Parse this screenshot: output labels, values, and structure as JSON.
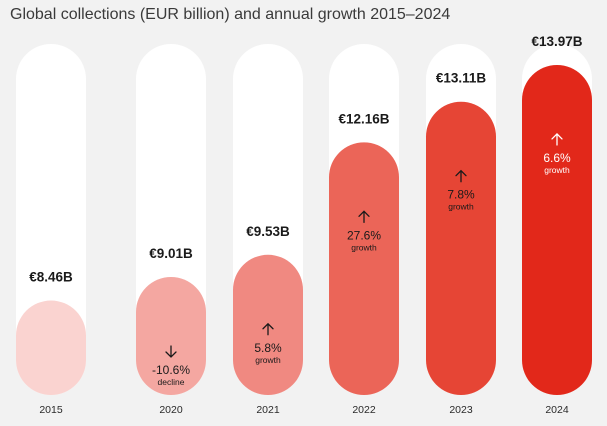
{
  "chart_data": {
    "type": "bar",
    "title": "Global collections (EUR billion) and annual growth 2015–2024",
    "xlabel": "",
    "ylabel": "",
    "categories": [
      "2015",
      "2020",
      "2021",
      "2022",
      "2023",
      "2024"
    ],
    "values": [
      8.46,
      9.01,
      9.53,
      12.16,
      13.11,
      13.97
    ],
    "value_labels": [
      "€8.46B",
      "€9.01B",
      "€9.53B",
      "€12.16B",
      "€13.11B",
      "€13.97B"
    ],
    "growth_labels": [
      "",
      "-10.6%",
      "5.8%",
      "27.6%",
      "7.8%",
      "6.6%"
    ],
    "growth_notes": [
      "",
      "decline",
      "growth",
      "growth",
      "growth",
      "growth"
    ],
    "growth_direction": [
      "none",
      "down",
      "up",
      "up",
      "up",
      "up"
    ],
    "ylim": [
      6.25,
      14.46
    ],
    "colors": [
      "#fad3d0",
      "#f4a7a1",
      "#f08981",
      "#eb6558",
      "#e64535",
      "#e2281a"
    ],
    "track_color": "#ffffff"
  }
}
